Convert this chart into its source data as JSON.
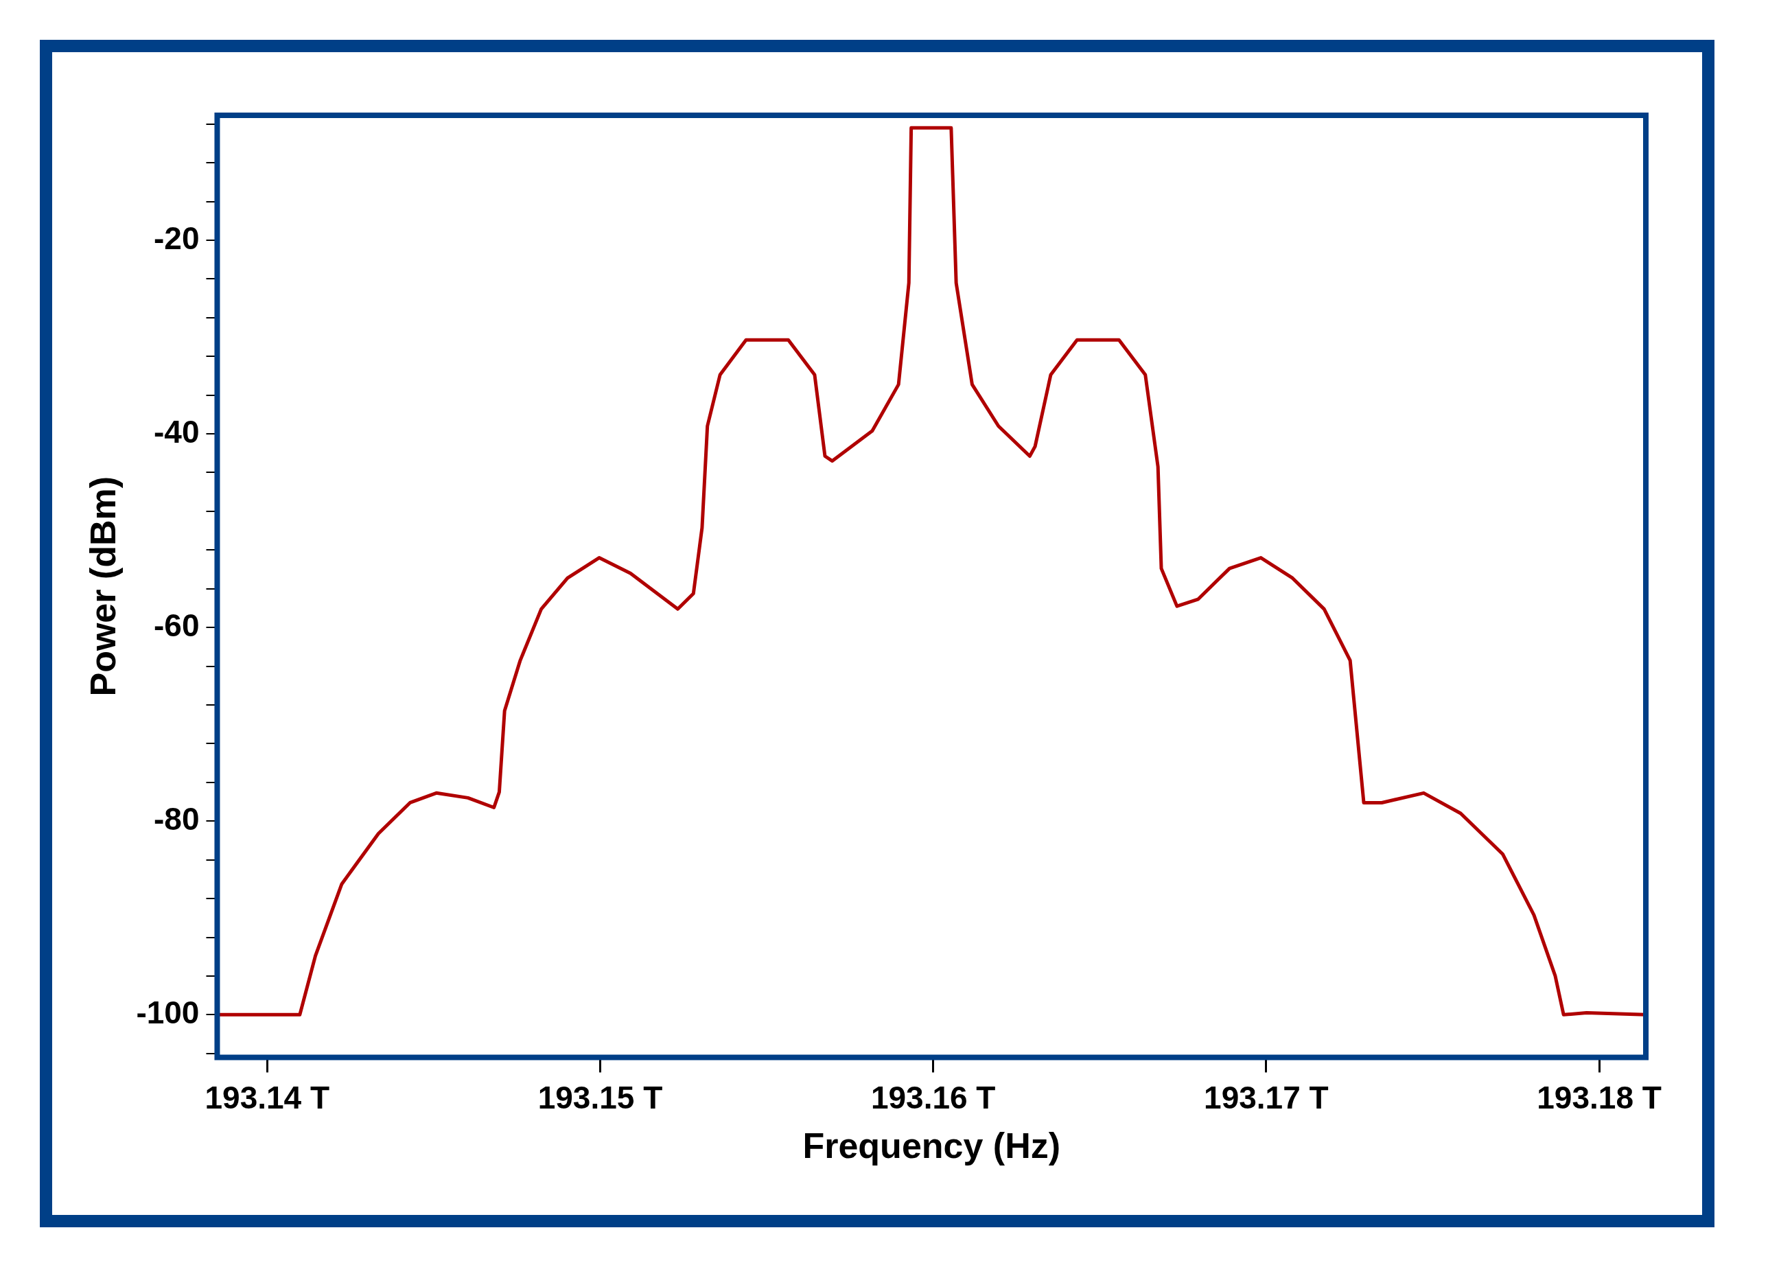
{
  "chart_data": {
    "type": "line",
    "xlabel": "Frequency (Hz)",
    "ylabel": "Power (dBm)",
    "xlim": [
      193.1385,
      193.1814
    ],
    "ylim": [
      -104.4,
      -7.1
    ],
    "xticks": [
      {
        "value": 193.14,
        "label": "193.14 T"
      },
      {
        "value": 193.15,
        "label": "193.15 T"
      },
      {
        "value": 193.16,
        "label": "193.16 T"
      },
      {
        "value": 193.17,
        "label": "193.17 T"
      },
      {
        "value": 193.18,
        "label": "193.18 T"
      }
    ],
    "yticks": [
      {
        "value": -104,
        "label": null
      },
      -100,
      {
        "value": -96,
        "label": null
      },
      {
        "value": -92,
        "label": null
      },
      {
        "value": -88,
        "label": null
      },
      {
        "value": -84,
        "label": null
      },
      -80,
      {
        "value": -76,
        "label": null
      },
      {
        "value": -72,
        "label": null
      },
      {
        "value": -68,
        "label": null
      },
      {
        "value": -64,
        "label": null
      },
      -60,
      {
        "value": -56,
        "label": null
      },
      {
        "value": -52,
        "label": null
      },
      {
        "value": -48,
        "label": null
      },
      {
        "value": -44,
        "label": null
      },
      -40,
      {
        "value": -36,
        "label": null
      },
      {
        "value": -32,
        "label": null
      },
      {
        "value": -28,
        "label": null
      },
      {
        "value": -24,
        "label": null
      },
      -20,
      {
        "value": -16,
        "label": null
      },
      {
        "value": -12,
        "label": null
      },
      {
        "value": -8,
        "label": null
      }
    ],
    "grid": false,
    "legend": false,
    "marker": "none",
    "line_style": "solid",
    "series": [
      {
        "color": "#b00000",
        "x": [
          193.1385,
          193.14098,
          193.14145,
          193.14224,
          193.14334,
          193.14429,
          193.14508,
          193.14603,
          193.14681,
          193.14697,
          193.14713,
          193.1476,
          193.14823,
          193.14902,
          193.14997,
          193.15091,
          193.15233,
          193.1528,
          193.15306,
          193.15322,
          193.1536,
          193.15438,
          193.15565,
          193.15644,
          193.15675,
          193.15697,
          193.15817,
          193.15896,
          193.15927,
          193.15934,
          193.16054,
          193.16069,
          193.16117,
          193.16196,
          193.1629,
          193.16306,
          193.16353,
          193.16432,
          193.16558,
          193.16637,
          193.16675,
          193.16685,
          193.16732,
          193.16795,
          193.1689,
          193.16984,
          193.17079,
          193.17174,
          193.17252,
          193.17293,
          193.17347,
          193.17473,
          193.17584,
          193.1771,
          193.17804,
          193.17868,
          193.17893,
          193.17962,
          193.1814
        ],
        "values": [
          -100,
          -100,
          -93.9,
          -86.5,
          -81.3,
          -78.1,
          -77.1,
          -77.6,
          -78.6,
          -77,
          -68.6,
          -63.4,
          -58.1,
          -54.9,
          -52.8,
          -54.4,
          -58.1,
          -56.5,
          -49.7,
          -39.2,
          -33.9,
          -30.3,
          -30.3,
          -33.9,
          -42.3,
          -42.8,
          -39.7,
          -34.9,
          -24.4,
          -8.4,
          -8.4,
          -24.4,
          -34.9,
          -39.2,
          -42.3,
          -41.3,
          -33.9,
          -30.3,
          -30.3,
          -33.9,
          -43.4,
          -53.9,
          -57.8,
          -57.1,
          -53.9,
          -52.8,
          -54.9,
          -58.1,
          -63.4,
          -78.1,
          -78.1,
          -77.1,
          -79.2,
          -83.4,
          -89.7,
          -96,
          -100,
          -99.8,
          -100
        ]
      }
    ]
  }
}
